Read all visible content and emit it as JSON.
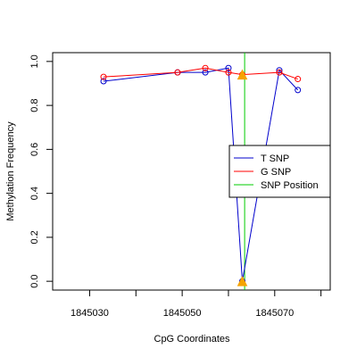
{
  "chart_data": {
    "type": "line",
    "title": "",
    "xlabel": "CpG Coordinates",
    "ylabel": "Methylation Frequency",
    "xlim": [
      1845022,
      1845082
    ],
    "ylim": [
      -0.04,
      1.04
    ],
    "x_ticks": [
      1845030,
      1845050,
      1845070
    ],
    "x_tick_marks": [
      1845030,
      1845040,
      1845050,
      1845060,
      1845070,
      1845080
    ],
    "y_ticks": [
      0.0,
      0.2,
      0.4,
      0.6,
      0.8,
      1.0
    ],
    "y_tick_labels": [
      "0.0",
      "0.2",
      "0.4",
      "0.6",
      "0.8",
      "1.0"
    ],
    "grid": false,
    "legend_position": "right",
    "series": [
      {
        "name": "T SNP",
        "color": "#0000cc",
        "x": [
          1845033,
          1845049,
          1845055,
          1845060,
          1845063,
          1845071,
          1845075
        ],
        "y": [
          0.91,
          0.95,
          0.95,
          0.97,
          0.0,
          0.96,
          0.87
        ]
      },
      {
        "name": "G SNP",
        "color": "#ff0000",
        "x": [
          1845033,
          1845049,
          1845055,
          1845060,
          1845063,
          1845071,
          1845075
        ],
        "y": [
          0.93,
          0.95,
          0.97,
          0.95,
          0.94,
          0.95,
          0.92
        ]
      }
    ],
    "snp": {
      "name": "SNP Position",
      "color": "#00cc00",
      "x": 1845063.5
    },
    "markers": [
      {
        "x": 1845063,
        "y": 0.94,
        "color": "#f5a300",
        "shape": "triangle"
      },
      {
        "x": 1845063,
        "y": 0.0,
        "color": "#f5a300",
        "shape": "triangle"
      }
    ]
  }
}
